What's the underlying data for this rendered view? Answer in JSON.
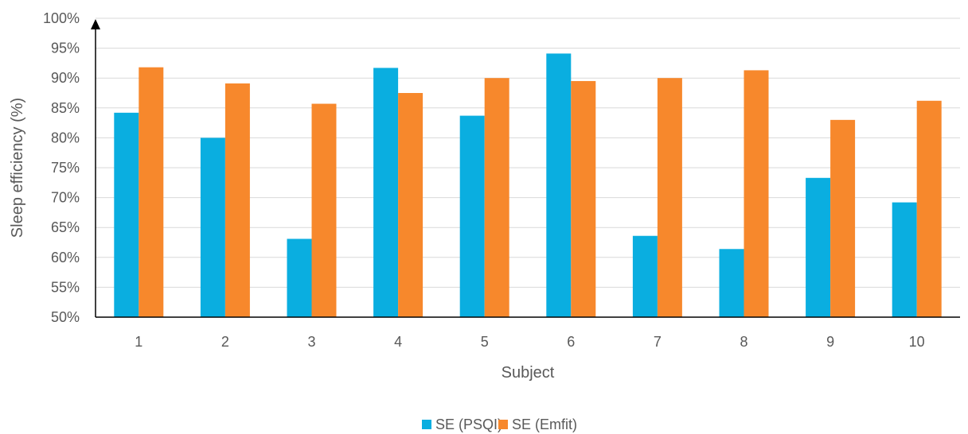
{
  "chart_data": {
    "type": "bar",
    "title": "",
    "xlabel": "Subject",
    "ylabel": "Sleep efficiency (%)",
    "categories": [
      "1",
      "2",
      "3",
      "4",
      "5",
      "6",
      "7",
      "8",
      "9",
      "10"
    ],
    "ylim": [
      50,
      100
    ],
    "yticks": [
      "50%",
      "55%",
      "60%",
      "65%",
      "70%",
      "75%",
      "80%",
      "85%",
      "90%",
      "95%",
      "100%"
    ],
    "grid": true,
    "legend_position": "bottom",
    "series": [
      {
        "name": "SE (PSQI)",
        "color": "#0aaee0",
        "values": [
          84.2,
          80.0,
          63.1,
          91.7,
          83.7,
          94.1,
          63.6,
          61.4,
          73.3,
          69.2
        ]
      },
      {
        "name": "SE (Emfit)",
        "color": "#f7882c",
        "values": [
          91.8,
          89.1,
          85.7,
          87.5,
          90.0,
          89.5,
          90.0,
          91.3,
          83.0,
          86.2
        ]
      }
    ]
  }
}
